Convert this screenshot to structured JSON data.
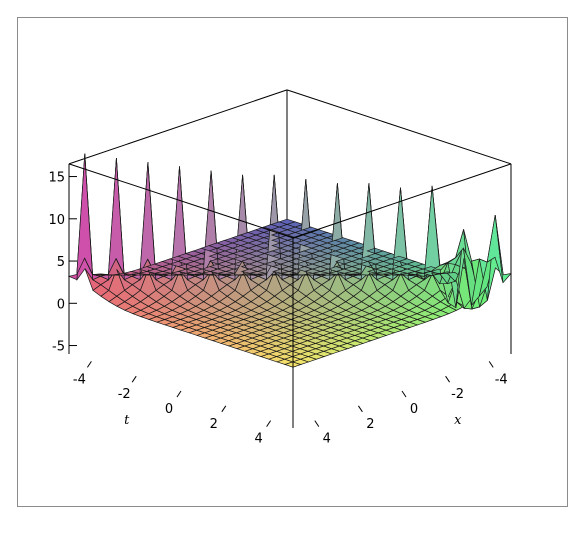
{
  "chart_data": {
    "type": "surface3d",
    "title": "",
    "axes": {
      "x": {
        "label": "x",
        "range": [
          -5,
          5
        ],
        "ticks": [
          -4,
          -2,
          0,
          2,
          4
        ]
      },
      "t": {
        "label": "t",
        "range": [
          -5,
          5
        ],
        "ticks": [
          -4,
          -2,
          0,
          2,
          4
        ]
      },
      "z": {
        "label": "",
        "range": [
          -6,
          15
        ],
        "ticks": [
          -5,
          0,
          5,
          10,
          15
        ]
      }
    },
    "grid": false,
    "box": true,
    "legend": "none",
    "surface": {
      "description_values": {
        "baseline_low_t_side": 1.2,
        "peak_count": 14,
        "peak_height_approx": [
          14.5,
          14,
          13.5,
          13,
          12.5,
          12,
          12,
          11.5,
          11,
          11,
          10.5,
          10,
          9.5,
          9
        ],
        "min_value_near_x_neg4_t_pos4": -5
      }
    },
    "colors": {
      "low_corner": "#f7e46a",
      "left_corner": "#e85a78",
      "right_corner": "#5ef27a",
      "peaks_left": "#c23fd8",
      "peaks_right": "#59e6d8",
      "top_back": "#5a5fb8",
      "mesh_line": "#1a1a1a"
    }
  }
}
